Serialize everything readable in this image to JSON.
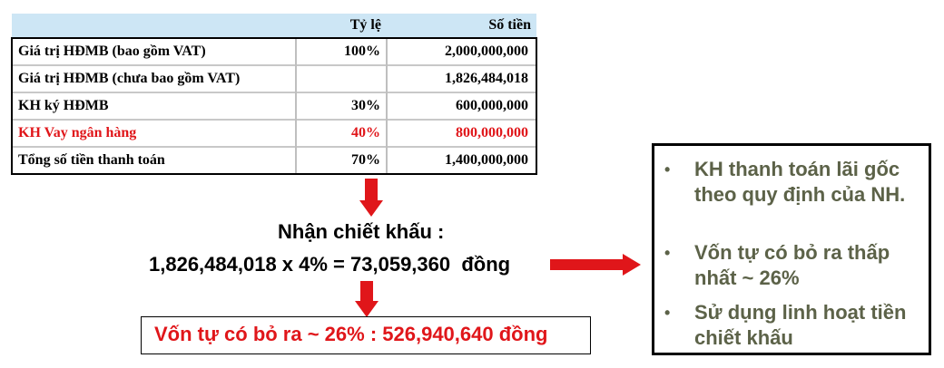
{
  "table": {
    "headers": [
      "",
      "Tỷ lệ",
      "Số tiền"
    ],
    "rows": [
      {
        "label": "Giá trị HĐMB (bao gồm VAT)",
        "rate": "100%",
        "amount": "2,000,000,000",
        "highlight": false
      },
      {
        "label": "Giá trị HĐMB (chưa bao gồm VAT)",
        "rate": "",
        "amount": "1,826,484,018",
        "highlight": false
      },
      {
        "label": "KH ký HĐMB",
        "rate": "30%",
        "amount": "600,000,000",
        "highlight": false
      },
      {
        "label": "KH Vay ngân hàng",
        "rate": "40%",
        "amount": "800,000,000",
        "highlight": true
      },
      {
        "label": "Tổng số tiền thanh toán",
        "rate": "70%",
        "amount": "1,400,000,000",
        "highlight": false
      }
    ]
  },
  "discount": {
    "title": "Nhận chiết khấu :",
    "formula": "1,826,484,018 x 4% = 73,059,360  đồng"
  },
  "result": {
    "text": "Vốn tự có bỏ ra ~ 26% : 526,940,640 đồng"
  },
  "notes": {
    "bullet_symbol": "•",
    "items": [
      "KH thanh toán lãi gốc theo quy định của NH.",
      "Vốn tự có bỏ ra thấp nhất ~ 26%",
      "Sử dụng linh hoạt tiền chiết khấu"
    ]
  },
  "colors": {
    "arrow": "#e0161a",
    "highlight_text": "#e0161a",
    "header_bg": "#cde6f5",
    "bullet_text": "#5c6248"
  }
}
